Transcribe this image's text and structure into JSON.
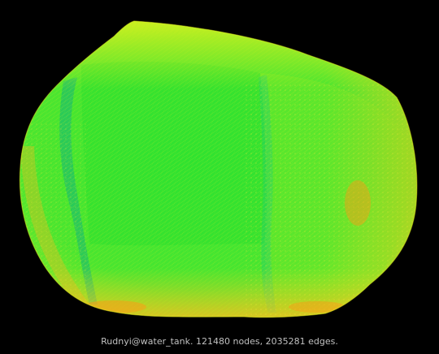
{
  "caption": "Rudnyi@water_tank. 121480 nodes, 2035281 edges.",
  "colors": {
    "background": "#000000",
    "caption": "#c0c0c0",
    "mesh_primary": "#33e633",
    "mesh_secondary": "#c8f01e",
    "mesh_highlight": "#ff9a14",
    "mesh_shadow": "#14b478"
  }
}
